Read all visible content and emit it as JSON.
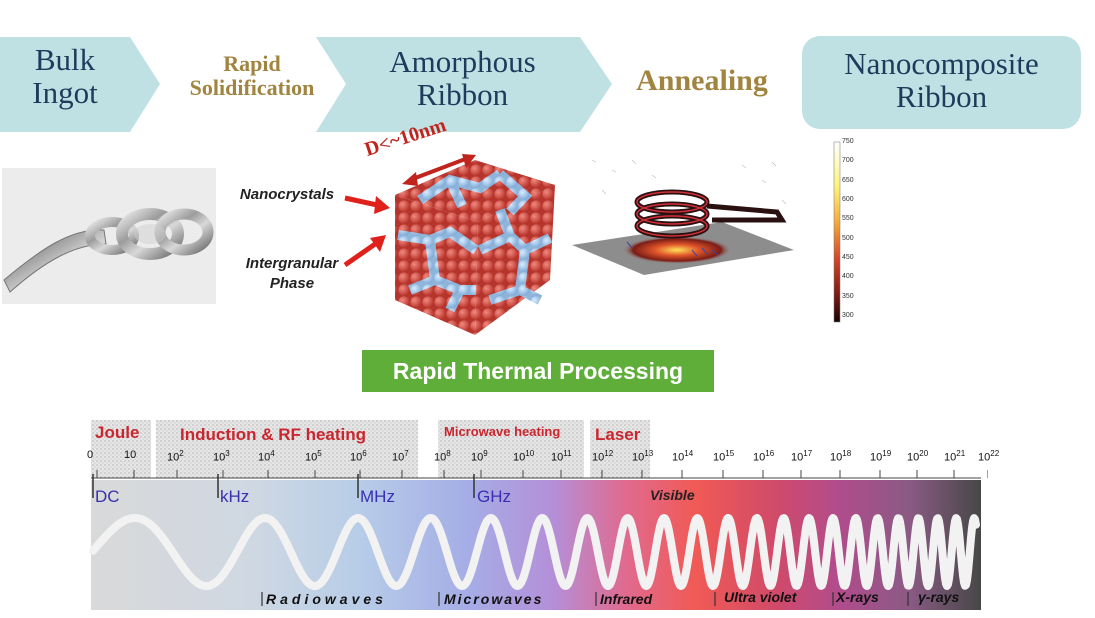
{
  "flow": {
    "step1": [
      "Bulk",
      "Ingot"
    ],
    "arrow1": [
      "Rapid",
      "Solidification"
    ],
    "step2": [
      "Amorphous",
      "Ribbon"
    ],
    "arrow2": "Annealing",
    "step3": [
      "Nanocomposite",
      "Ribbon"
    ]
  },
  "nano": {
    "size_label": "D<~10nm",
    "crystals_label": "Nanocrystals",
    "phase_label": [
      "Intergranular",
      "Phase"
    ]
  },
  "colorbar": {
    "ticks": [
      "750",
      "700",
      "650",
      "600",
      "550",
      "500",
      "450",
      "400",
      "350",
      "300"
    ]
  },
  "button": {
    "label": "Rapid Thermal Processing"
  },
  "spectrum": {
    "heating_methods": {
      "joule": "Joule",
      "induction": "Induction & RF heating",
      "microwave": "Microwave heating",
      "laser": "Laser"
    },
    "scale": [
      {
        "base": "0",
        "exp": ""
      },
      {
        "base": "10",
        "exp": ""
      },
      {
        "base": "10",
        "exp": "2"
      },
      {
        "base": "10",
        "exp": "3"
      },
      {
        "base": "10",
        "exp": "4"
      },
      {
        "base": "10",
        "exp": "5"
      },
      {
        "base": "10",
        "exp": "6"
      },
      {
        "base": "10",
        "exp": "7"
      },
      {
        "base": "10",
        "exp": "8"
      },
      {
        "base": "10",
        "exp": "9"
      },
      {
        "base": "10",
        "exp": "10"
      },
      {
        "base": "10",
        "exp": "11"
      },
      {
        "base": "10",
        "exp": "12"
      },
      {
        "base": "10",
        "exp": "13"
      },
      {
        "base": "10",
        "exp": "14"
      },
      {
        "base": "10",
        "exp": "15"
      },
      {
        "base": "10",
        "exp": "16"
      },
      {
        "base": "10",
        "exp": "17"
      },
      {
        "base": "10",
        "exp": "18"
      },
      {
        "base": "10",
        "exp": "19"
      },
      {
        "base": "10",
        "exp": "20"
      },
      {
        "base": "10",
        "exp": "21"
      },
      {
        "base": "10",
        "exp": "22"
      }
    ],
    "freq_units": [
      "DC",
      "kHz",
      "MHz",
      "GHz"
    ],
    "visible": "Visible",
    "bands": [
      "Radiowaves",
      "Microwaves",
      "Infrared",
      "Ultra violet",
      "X-rays",
      "γ-rays"
    ]
  }
}
